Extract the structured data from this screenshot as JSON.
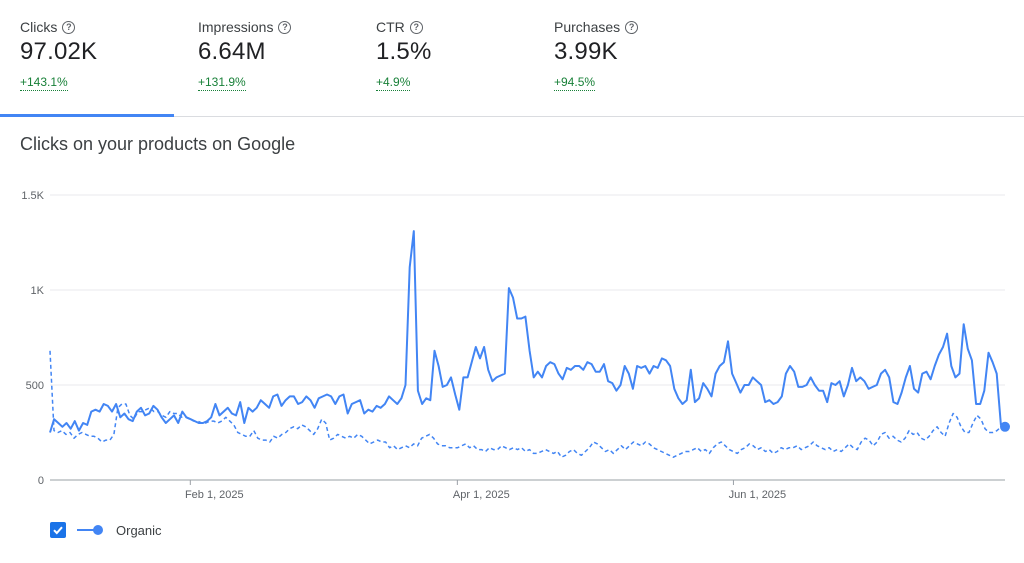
{
  "metrics": [
    {
      "label": "Clicks",
      "value": "97.02K",
      "delta": "+143.1%",
      "active": true
    },
    {
      "label": "Impressions",
      "value": "6.64M",
      "delta": "+131.9%",
      "active": false
    },
    {
      "label": "CTR",
      "value": "1.5%",
      "delta": "+4.9%",
      "active": false
    },
    {
      "label": "Purchases",
      "value": "3.99K",
      "delta": "+94.5%",
      "active": false
    }
  ],
  "colors": {
    "accent": "#4285f4",
    "positive": "#188038",
    "checkbox": "#1a73e8"
  },
  "legend": {
    "label": "Organic",
    "checked": true
  },
  "chart_data": {
    "type": "line",
    "title": "Clicks on your products on Google",
    "xlabel": "",
    "ylabel": "",
    "ylim": [
      0,
      1500
    ],
    "yticks": [
      0,
      500,
      1000,
      1500
    ],
    "ytick_labels": [
      "0",
      "500",
      "1K",
      "1.5K"
    ],
    "x_range": [
      "2025-01-01",
      "2025-07-31"
    ],
    "xticks": [
      "2025-02-01",
      "2025-04-01",
      "2025-06-01"
    ],
    "xtick_labels": [
      "Feb 1, 2025",
      "Apr 1, 2025",
      "Jun 1, 2025"
    ],
    "grid": true,
    "legend_position": "bottom-left",
    "series": [
      {
        "name": "Organic",
        "style": "solid",
        "values": [
          250,
          320,
          300,
          280,
          300,
          270,
          310,
          260,
          300,
          290,
          360,
          370,
          360,
          400,
          390,
          360,
          400,
          330,
          350,
          320,
          310,
          360,
          380,
          340,
          350,
          390,
          370,
          330,
          300,
          320,
          340,
          300,
          360,
          330,
          320,
          310,
          300,
          300,
          310,
          330,
          400,
          340,
          360,
          380,
          350,
          340,
          410,
          300,
          380,
          360,
          380,
          420,
          400,
          380,
          440,
          450,
          390,
          420,
          440,
          440,
          400,
          410,
          440,
          420,
          380,
          430,
          440,
          450,
          440,
          400,
          440,
          450,
          350,
          400,
          410,
          420,
          350,
          370,
          360,
          390,
          380,
          400,
          440,
          420,
          400,
          430,
          500,
          1120,
          1310,
          470,
          400,
          430,
          420,
          680,
          600,
          490,
          500,
          540,
          450,
          370,
          540,
          540,
          620,
          700,
          640,
          700,
          580,
          520,
          540,
          550,
          560,
          1010,
          960,
          850,
          850,
          860,
          680,
          540,
          570,
          540,
          600,
          620,
          610,
          560,
          530,
          590,
          580,
          600,
          600,
          580,
          620,
          610,
          570,
          570,
          610,
          520,
          510,
          470,
          500,
          600,
          560,
          480,
          600,
          590,
          600,
          560,
          600,
          590,
          640,
          630,
          600,
          480,
          430,
          400,
          420,
          580,
          410,
          430,
          510,
          480,
          440,
          560,
          600,
          620,
          730,
          560,
          510,
          460,
          500,
          500,
          540,
          520,
          500,
          410,
          420,
          400,
          410,
          440,
          560,
          600,
          570,
          490,
          490,
          500,
          540,
          500,
          470,
          470,
          410,
          510,
          500,
          520,
          440,
          500,
          590,
          520,
          540,
          520,
          480,
          490,
          500,
          560,
          580,
          540,
          410,
          400,
          460,
          540,
          600,
          480,
          460,
          560,
          570,
          530,
          600,
          660,
          700,
          770,
          600,
          540,
          560,
          820,
          690,
          630,
          400,
          400,
          470,
          670,
          620,
          560,
          290,
          280
        ],
        "marker_last": true
      },
      {
        "name": "",
        "style": "dashed",
        "values": [
          680,
          260,
          250,
          260,
          240,
          250,
          220,
          240,
          250,
          240,
          230,
          230,
          220,
          200,
          210,
          210,
          240,
          380,
          400,
          400,
          340,
          320,
          360,
          360,
          370,
          380,
          360,
          360,
          340,
          330,
          360,
          350,
          350,
          330,
          330,
          320,
          310,
          310,
          300,
          300,
          310,
          310,
          300,
          310,
          330,
          310,
          290,
          250,
          240,
          230,
          230,
          260,
          220,
          210,
          210,
          200,
          230,
          220,
          240,
          250,
          270,
          280,
          270,
          290,
          280,
          260,
          240,
          270,
          320,
          300,
          210,
          220,
          240,
          230,
          220,
          230,
          220,
          240,
          230,
          210,
          190,
          200,
          210,
          200,
          200,
          170,
          180,
          160,
          170,
          180,
          170,
          190,
          180,
          220,
          230,
          240,
          220,
          190,
          180,
          180,
          170,
          170,
          170,
          180,
          190,
          170,
          180,
          160,
          160,
          150,
          170,
          160,
          160,
          180,
          170,
          160,
          170,
          160,
          170,
          150,
          160,
          140,
          140,
          150,
          160,
          150,
          140,
          150,
          120,
          130,
          150,
          160,
          140,
          130,
          150,
          170,
          200,
          190,
          170,
          150,
          160,
          140,
          160,
          180,
          160,
          180,
          200,
          190,
          180,
          200,
          190,
          170,
          160,
          150,
          140,
          130,
          120,
          130,
          140,
          150,
          150,
          160,
          170,
          150,
          160,
          140,
          170,
          190,
          200,
          180,
          160,
          150,
          140,
          160,
          170,
          190,
          180,
          160,
          170,
          150,
          160,
          140,
          150,
          170,
          160,
          170,
          170,
          180,
          160,
          170,
          180,
          200,
          180,
          170,
          160,
          170,
          150,
          160,
          150,
          170,
          190,
          170,
          160,
          200,
          220,
          210,
          180,
          200,
          240,
          250,
          220,
          230,
          210,
          200,
          220,
          260,
          240,
          250,
          220,
          210,
          230,
          260,
          280,
          250,
          230,
          300,
          350,
          330,
          280,
          250,
          250,
          300,
          340,
          320,
          270,
          250,
          250,
          260,
          280,
          280
        ]
      }
    ]
  }
}
